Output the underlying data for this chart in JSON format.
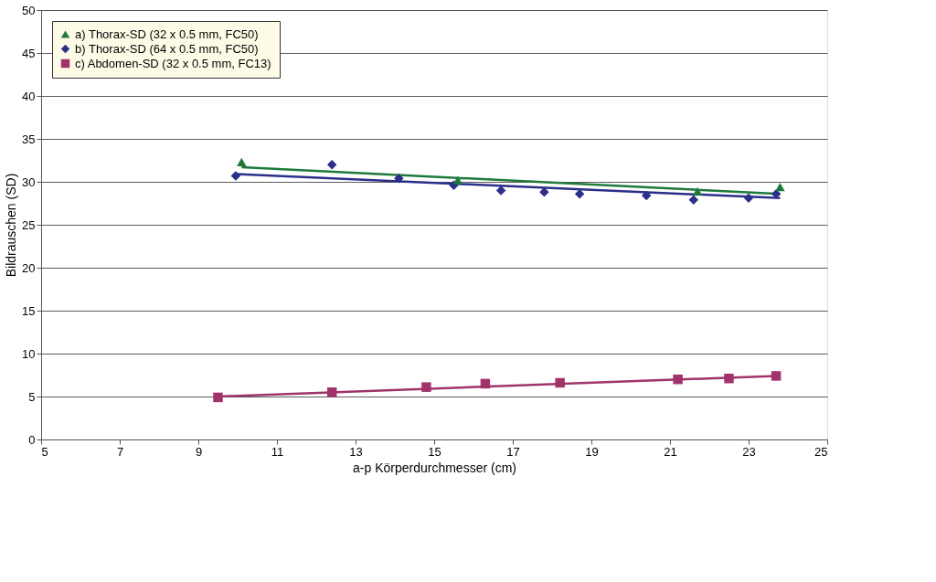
{
  "chart_data": {
    "type": "scatter",
    "xlabel": "a-p Körperdurchmesser (cm)",
    "ylabel": "Bildrauschen (SD)",
    "xlim": [
      5,
      25
    ],
    "xticks": [
      5,
      7,
      9,
      11,
      13,
      15,
      17,
      19,
      21,
      23,
      25
    ],
    "ylim": [
      0,
      50
    ],
    "yticks": [
      0,
      5,
      10,
      15,
      20,
      25,
      30,
      35,
      40,
      45,
      50
    ],
    "grid": "y",
    "legend": "top left",
    "series": [
      {
        "name": "a) Thorax-SD (32 x 0.5 mm, FC50)",
        "color": "#1e7a3c",
        "marker": "triangle",
        "x": [
          10.1,
          15.6,
          21.7,
          23.8
        ],
        "values": [
          32.3,
          30.2,
          28.9,
          29.4
        ]
      },
      {
        "name": "b) Thorax-SD (64 x 0.5 mm, FC50)",
        "color": "#2b2f8a",
        "marker": "diamond",
        "x": [
          9.95,
          12.4,
          14.1,
          15.5,
          16.7,
          17.8,
          18.7,
          20.4,
          21.6,
          23.0,
          23.7
        ],
        "values": [
          30.7,
          32.0,
          30.4,
          29.6,
          29.0,
          28.8,
          28.6,
          28.4,
          27.9,
          28.1,
          28.6
        ]
      },
      {
        "name": "c) Abdomen-SD (32 x 0.5 mm, FC13)",
        "color": "#a0346a",
        "marker": "square",
        "x": [
          9.5,
          12.4,
          14.8,
          16.3,
          18.2,
          21.2,
          22.5,
          23.7
        ],
        "values": [
          4.9,
          5.5,
          6.1,
          6.5,
          6.6,
          7.0,
          7.1,
          7.4
        ]
      },
      {
        "type": "line",
        "color": "#1e7a3c",
        "x": [
          10.1,
          23.8
        ],
        "values": [
          31.7,
          28.6
        ]
      },
      {
        "type": "line",
        "color": "#2b2f8a",
        "x": [
          9.95,
          23.8
        ],
        "values": [
          30.9,
          28.1
        ]
      },
      {
        "type": "line",
        "color": "#a0346a",
        "x": [
          9.5,
          23.7
        ],
        "values": [
          5.0,
          7.4
        ]
      }
    ]
  }
}
